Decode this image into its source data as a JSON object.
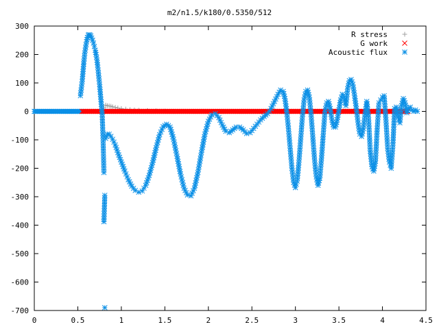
{
  "chart_data": {
    "type": "scatter",
    "title": "m2/n1.5/k180/0.5350/512",
    "xlabel": "",
    "ylabel": "",
    "xlim": [
      0,
      4.5
    ],
    "ylim": [
      -700,
      300
    ],
    "x_ticks": [
      "0",
      "0.5",
      "1",
      "1.5",
      "2",
      "2.5",
      "3",
      "3.5",
      "4",
      "4.5"
    ],
    "y_ticks": [
      "300",
      "200",
      "100",
      "0",
      "-100",
      "-200",
      "-300",
      "-400",
      "-500",
      "-600",
      "-700"
    ],
    "grid": false,
    "legend_position": "top-right",
    "series": [
      {
        "name": "R stress",
        "marker": "plus",
        "color": "#a0a0a0",
        "points": [
          [
            0.8,
            12
          ],
          [
            0.82,
            22
          ],
          [
            0.84,
            20
          ],
          [
            0.86,
            19
          ],
          [
            0.88,
            18
          ],
          [
            0.9,
            16
          ],
          [
            0.93,
            14
          ],
          [
            0.96,
            12
          ],
          [
            1.0,
            10
          ],
          [
            1.05,
            8
          ],
          [
            1.1,
            6
          ],
          [
            1.15,
            5
          ],
          [
            1.2,
            4
          ],
          [
            1.3,
            3
          ],
          [
            1.4,
            2
          ],
          [
            1.5,
            1
          ],
          [
            1.6,
            0
          ]
        ]
      },
      {
        "name": "G work",
        "marker": "cross",
        "color": "#ff0000",
        "points": [
          [
            0.55,
            0
          ],
          [
            4.3,
            0
          ]
        ]
      },
      {
        "name": "Acoustic flux",
        "marker": "star",
        "color": "#0a8fe6",
        "points": [
          [
            0.0,
            0
          ],
          [
            0.55,
            0
          ],
          [
            0.53,
            55
          ],
          [
            0.55,
            105
          ],
          [
            0.56,
            140
          ],
          [
            0.57,
            175
          ],
          [
            0.58,
            205
          ],
          [
            0.59,
            225
          ],
          [
            0.6,
            245
          ],
          [
            0.61,
            260
          ],
          [
            0.62,
            268
          ],
          [
            0.63,
            270
          ],
          [
            0.64,
            268
          ],
          [
            0.65,
            265
          ],
          [
            0.66,
            258
          ],
          [
            0.67,
            250
          ],
          [
            0.68,
            240
          ],
          [
            0.69,
            228
          ],
          [
            0.7,
            215
          ],
          [
            0.71,
            200
          ],
          [
            0.72,
            180
          ],
          [
            0.73,
            155
          ],
          [
            0.74,
            125
          ],
          [
            0.75,
            95
          ],
          [
            0.76,
            60
          ],
          [
            0.77,
            25
          ],
          [
            0.78,
            -10
          ],
          [
            0.79,
            -95
          ],
          [
            0.8,
            -215
          ],
          [
            0.8,
            -388
          ],
          [
            0.81,
            -295
          ],
          [
            0.81,
            -690
          ],
          [
            0.82,
            -95
          ],
          [
            0.84,
            -80
          ],
          [
            0.86,
            -80
          ],
          [
            0.88,
            -88
          ],
          [
            0.9,
            -98
          ],
          [
            0.93,
            -118
          ],
          [
            0.96,
            -145
          ],
          [
            1.0,
            -178
          ],
          [
            1.04,
            -210
          ],
          [
            1.08,
            -240
          ],
          [
            1.12,
            -263
          ],
          [
            1.16,
            -278
          ],
          [
            1.2,
            -284
          ],
          [
            1.24,
            -280
          ],
          [
            1.28,
            -260
          ],
          [
            1.32,
            -225
          ],
          [
            1.36,
            -180
          ],
          [
            1.4,
            -128
          ],
          [
            1.44,
            -82
          ],
          [
            1.48,
            -54
          ],
          [
            1.52,
            -45
          ],
          [
            1.56,
            -55
          ],
          [
            1.6,
            -98
          ],
          [
            1.64,
            -158
          ],
          [
            1.68,
            -220
          ],
          [
            1.72,
            -270
          ],
          [
            1.76,
            -294
          ],
          [
            1.8,
            -297
          ],
          [
            1.84,
            -270
          ],
          [
            1.88,
            -215
          ],
          [
            1.92,
            -145
          ],
          [
            1.96,
            -80
          ],
          [
            2.0,
            -35
          ],
          [
            2.04,
            -12
          ],
          [
            2.08,
            -8
          ],
          [
            2.12,
            -22
          ],
          [
            2.16,
            -48
          ],
          [
            2.2,
            -70
          ],
          [
            2.24,
            -75
          ],
          [
            2.28,
            -65
          ],
          [
            2.32,
            -55
          ],
          [
            2.36,
            -55
          ],
          [
            2.4,
            -65
          ],
          [
            2.44,
            -78
          ],
          [
            2.48,
            -75
          ],
          [
            2.52,
            -60
          ],
          [
            2.56,
            -45
          ],
          [
            2.6,
            -30
          ],
          [
            2.64,
            -18
          ],
          [
            2.68,
            -8
          ],
          [
            2.72,
            10
          ],
          [
            2.76,
            35
          ],
          [
            2.8,
            60
          ],
          [
            2.83,
            75
          ],
          [
            2.86,
            70
          ],
          [
            2.88,
            45
          ],
          [
            2.9,
            0
          ],
          [
            2.92,
            -60
          ],
          [
            2.94,
            -130
          ],
          [
            2.96,
            -200
          ],
          [
            2.98,
            -250
          ],
          [
            3.0,
            -268
          ],
          [
            3.02,
            -245
          ],
          [
            3.04,
            -180
          ],
          [
            3.06,
            -100
          ],
          [
            3.08,
            -20
          ],
          [
            3.1,
            40
          ],
          [
            3.12,
            70
          ],
          [
            3.14,
            75
          ],
          [
            3.16,
            50
          ],
          [
            3.18,
            -10
          ],
          [
            3.2,
            -90
          ],
          [
            3.22,
            -170
          ],
          [
            3.24,
            -230
          ],
          [
            3.26,
            -260
          ],
          [
            3.28,
            -235
          ],
          [
            3.3,
            -165
          ],
          [
            3.32,
            -80
          ],
          [
            3.34,
            0
          ],
          [
            3.36,
            30
          ],
          [
            3.38,
            35
          ],
          [
            3.4,
            10
          ],
          [
            3.42,
            -30
          ],
          [
            3.44,
            -55
          ],
          [
            3.46,
            -55
          ],
          [
            3.48,
            -30
          ],
          [
            3.5,
            5
          ],
          [
            3.52,
            40
          ],
          [
            3.54,
            60
          ],
          [
            3.56,
            50
          ],
          [
            3.58,
            20
          ],
          [
            3.6,
            80
          ],
          [
            3.62,
            108
          ],
          [
            3.64,
            112
          ],
          [
            3.66,
            95
          ],
          [
            3.68,
            55
          ],
          [
            3.7,
            10
          ],
          [
            3.72,
            -40
          ],
          [
            3.74,
            -80
          ],
          [
            3.76,
            -88
          ],
          [
            3.78,
            -60
          ],
          [
            3.8,
            -10
          ],
          [
            3.82,
            35
          ],
          [
            3.84,
            -20
          ],
          [
            3.86,
            -140
          ],
          [
            3.88,
            -195
          ],
          [
            3.9,
            -210
          ],
          [
            3.92,
            -175
          ],
          [
            3.94,
            -60
          ],
          [
            3.96,
            30
          ],
          [
            3.98,
            40
          ],
          [
            4.0,
            50
          ],
          [
            4.02,
            55
          ],
          [
            4.04,
            -30
          ],
          [
            4.06,
            -130
          ],
          [
            4.08,
            -178
          ],
          [
            4.1,
            -200
          ],
          [
            4.12,
            -120
          ],
          [
            4.14,
            10
          ],
          [
            4.16,
            15
          ],
          [
            4.18,
            -20
          ],
          [
            4.2,
            -40
          ],
          [
            4.22,
            20
          ],
          [
            4.24,
            45
          ],
          [
            4.26,
            30
          ],
          [
            4.28,
            -5
          ],
          [
            4.3,
            10
          ],
          [
            4.32,
            15
          ],
          [
            4.34,
            5
          ],
          [
            4.36,
            0
          ],
          [
            4.38,
            5
          ],
          [
            4.4,
            0
          ]
        ]
      }
    ]
  }
}
